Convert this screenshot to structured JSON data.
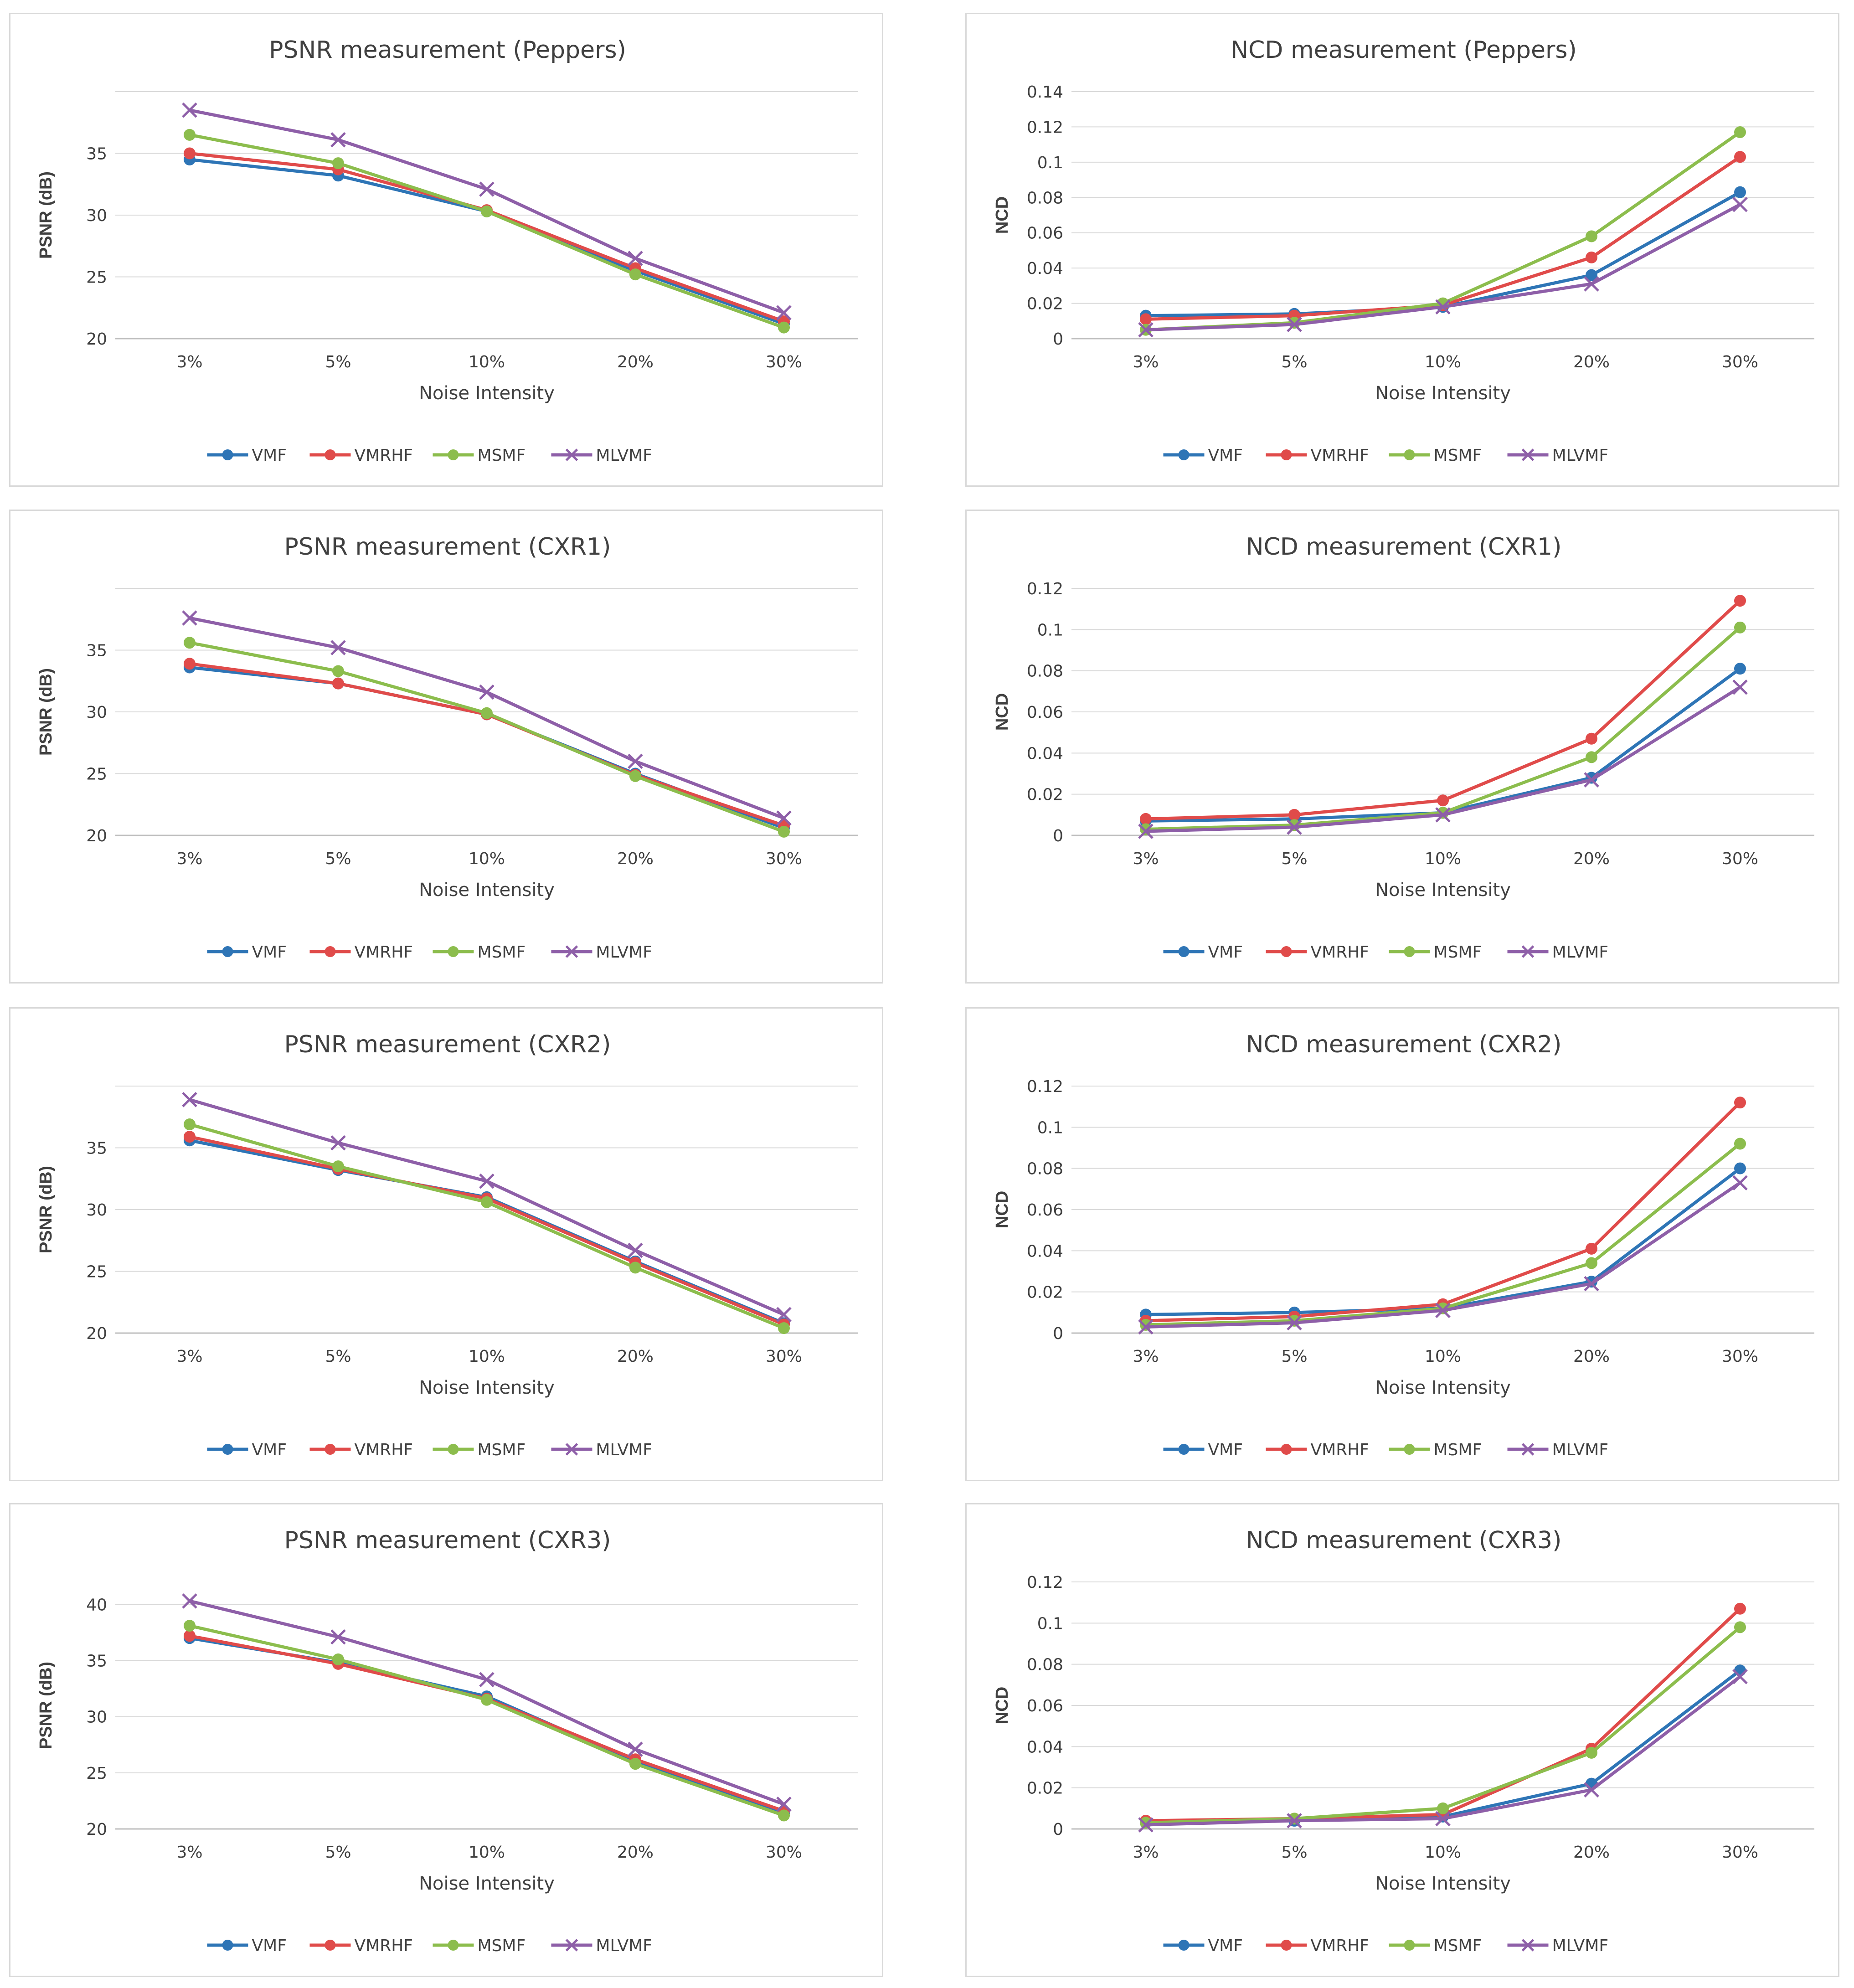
{
  "colors": {
    "VMF": "#2e75b6",
    "VMRHF": "#e04b4a",
    "MSMF": "#8cbd4d",
    "MLVMF": "#8e5fa8"
  },
  "chart_data": [
    {
      "id": "psnr-peppers",
      "type": "line",
      "title": "PSNR measurement (Peppers)",
      "xlabel": "Noise Intensity",
      "ylabel": "PSNR (dB)",
      "categories": [
        "3%",
        "5%",
        "10%",
        "20%",
        "30%"
      ],
      "ylim": [
        20,
        40
      ],
      "yticks": [
        20,
        25,
        30,
        35
      ],
      "ytick_labels": [
        "20",
        "25",
        "30",
        "35"
      ],
      "grid_ymax": 40,
      "series": [
        {
          "name": "VMF",
          "marker": "circle",
          "values": [
            34.5,
            33.2,
            30.3,
            25.5,
            21.2
          ]
        },
        {
          "name": "VMRHF",
          "marker": "circle",
          "values": [
            35.0,
            33.7,
            30.4,
            25.7,
            21.4
          ]
        },
        {
          "name": "MSMF",
          "marker": "circle",
          "values": [
            36.5,
            34.2,
            30.3,
            25.2,
            20.9
          ]
        },
        {
          "name": "MLVMF",
          "marker": "x",
          "values": [
            38.5,
            36.1,
            32.1,
            26.5,
            22.1
          ]
        }
      ]
    },
    {
      "id": "ncd-peppers",
      "type": "line",
      "title": "NCD measurement (Peppers)",
      "xlabel": "Noise Intensity",
      "ylabel": "NCD",
      "categories": [
        "3%",
        "5%",
        "10%",
        "20%",
        "30%"
      ],
      "ylim": [
        0,
        0.14
      ],
      "yticks": [
        0,
        0.02,
        0.04,
        0.06,
        0.08,
        0.1,
        0.12,
        0.14
      ],
      "ytick_labels": [
        "0",
        "0.02",
        "0.04",
        "0.06",
        "0.08",
        "0.1",
        "0.12",
        "0.14"
      ],
      "grid_ymax": 0.14,
      "series": [
        {
          "name": "VMF",
          "marker": "circle",
          "values": [
            0.013,
            0.014,
            0.018,
            0.036,
            0.083
          ]
        },
        {
          "name": "VMRHF",
          "marker": "circle",
          "values": [
            0.011,
            0.013,
            0.019,
            0.046,
            0.103
          ]
        },
        {
          "name": "MSMF",
          "marker": "circle",
          "values": [
            0.005,
            0.009,
            0.02,
            0.058,
            0.117
          ]
        },
        {
          "name": "MLVMF",
          "marker": "x",
          "values": [
            0.005,
            0.008,
            0.018,
            0.031,
            0.076
          ]
        }
      ]
    },
    {
      "id": "psnr-cxr1",
      "type": "line",
      "title": "PSNR measurement (CXR1)",
      "xlabel": "Noise Intensity",
      "ylabel": "PSNR (dB)",
      "categories": [
        "3%",
        "5%",
        "10%",
        "20%",
        "30%"
      ],
      "ylim": [
        20,
        40
      ],
      "yticks": [
        20,
        25,
        30,
        35
      ],
      "ytick_labels": [
        "20",
        "25",
        "30",
        "35"
      ],
      "grid_ymax": 40,
      "series": [
        {
          "name": "VMF",
          "marker": "circle",
          "values": [
            33.6,
            32.3,
            29.8,
            25.0,
            20.6
          ]
        },
        {
          "name": "VMRHF",
          "marker": "circle",
          "values": [
            33.9,
            32.3,
            29.8,
            24.9,
            20.8
          ]
        },
        {
          "name": "MSMF",
          "marker": "circle",
          "values": [
            35.6,
            33.3,
            29.9,
            24.8,
            20.3
          ]
        },
        {
          "name": "MLVMF",
          "marker": "x",
          "values": [
            37.6,
            35.2,
            31.6,
            26.0,
            21.4
          ]
        }
      ]
    },
    {
      "id": "ncd-cxr1",
      "type": "line",
      "title": "NCD measurement (CXR1)",
      "xlabel": "Noise Intensity",
      "ylabel": "NCD",
      "categories": [
        "3%",
        "5%",
        "10%",
        "20%",
        "30%"
      ],
      "ylim": [
        0,
        0.12
      ],
      "yticks": [
        0,
        0.02,
        0.04,
        0.06,
        0.08,
        0.1,
        0.12
      ],
      "ytick_labels": [
        "0",
        "0.02",
        "0.04",
        "0.06",
        "0.08",
        "0.1",
        "0.12"
      ],
      "grid_ymax": 0.12,
      "series": [
        {
          "name": "VMF",
          "marker": "circle",
          "values": [
            0.007,
            0.008,
            0.011,
            0.028,
            0.081
          ]
        },
        {
          "name": "VMRHF",
          "marker": "circle",
          "values": [
            0.008,
            0.01,
            0.017,
            0.047,
            0.114
          ]
        },
        {
          "name": "MSMF",
          "marker": "circle",
          "values": [
            0.003,
            0.005,
            0.011,
            0.038,
            0.101
          ]
        },
        {
          "name": "MLVMF",
          "marker": "x",
          "values": [
            0.002,
            0.004,
            0.01,
            0.027,
            0.072
          ]
        }
      ]
    },
    {
      "id": "psnr-cxr2",
      "type": "line",
      "title": "PSNR measurement (CXR2)",
      "xlabel": "Noise Intensity",
      "ylabel": "PSNR (dB)",
      "categories": [
        "3%",
        "5%",
        "10%",
        "20%",
        "30%"
      ],
      "ylim": [
        20,
        40
      ],
      "yticks": [
        20,
        25,
        30,
        35
      ],
      "ytick_labels": [
        "20",
        "25",
        "30",
        "35"
      ],
      "grid_ymax": 40,
      "series": [
        {
          "name": "VMF",
          "marker": "circle",
          "values": [
            35.6,
            33.2,
            31.0,
            25.8,
            20.8
          ]
        },
        {
          "name": "VMRHF",
          "marker": "circle",
          "values": [
            35.9,
            33.3,
            30.9,
            25.7,
            20.7
          ]
        },
        {
          "name": "MSMF",
          "marker": "circle",
          "values": [
            36.9,
            33.5,
            30.6,
            25.3,
            20.4
          ]
        },
        {
          "name": "MLVMF",
          "marker": "x",
          "values": [
            38.9,
            35.4,
            32.3,
            26.7,
            21.5
          ]
        }
      ]
    },
    {
      "id": "ncd-cxr2",
      "type": "line",
      "title": "NCD measurement (CXR2)",
      "xlabel": "Noise Intensity",
      "ylabel": "NCD",
      "categories": [
        "3%",
        "5%",
        "10%",
        "20%",
        "30%"
      ],
      "ylim": [
        0,
        0.12
      ],
      "yticks": [
        0,
        0.02,
        0.04,
        0.06,
        0.08,
        0.1,
        0.12
      ],
      "ytick_labels": [
        "0",
        "0.02",
        "0.04",
        "0.06",
        "0.08",
        "0.1",
        "0.12"
      ],
      "grid_ymax": 0.12,
      "series": [
        {
          "name": "VMF",
          "marker": "circle",
          "values": [
            0.009,
            0.01,
            0.012,
            0.025,
            0.08
          ]
        },
        {
          "name": "VMRHF",
          "marker": "circle",
          "values": [
            0.006,
            0.008,
            0.014,
            0.041,
            0.112
          ]
        },
        {
          "name": "MSMF",
          "marker": "circle",
          "values": [
            0.004,
            0.006,
            0.012,
            0.034,
            0.092
          ]
        },
        {
          "name": "MLVMF",
          "marker": "x",
          "values": [
            0.003,
            0.005,
            0.011,
            0.024,
            0.073
          ]
        }
      ]
    },
    {
      "id": "psnr-cxr3",
      "type": "line",
      "title": "PSNR measurement (CXR3)",
      "xlabel": "Noise Intensity",
      "ylabel": "PSNR (dB)",
      "categories": [
        "3%",
        "5%",
        "10%",
        "20%",
        "30%"
      ],
      "ylim": [
        20,
        42
      ],
      "yticks": [
        20,
        25,
        30,
        35,
        40
      ],
      "ytick_labels": [
        "20",
        "25",
        "30",
        "35",
        "40"
      ],
      "grid_ymax": 40,
      "series": [
        {
          "name": "VMF",
          "marker": "circle",
          "values": [
            37.0,
            34.8,
            31.8,
            26.0,
            21.4
          ]
        },
        {
          "name": "VMRHF",
          "marker": "circle",
          "values": [
            37.2,
            34.7,
            31.6,
            26.2,
            21.6
          ]
        },
        {
          "name": "MSMF",
          "marker": "circle",
          "values": [
            38.1,
            35.1,
            31.5,
            25.8,
            21.2
          ]
        },
        {
          "name": "MLVMF",
          "marker": "x",
          "values": [
            40.3,
            37.1,
            33.3,
            27.1,
            22.2
          ]
        }
      ]
    },
    {
      "id": "ncd-cxr3",
      "type": "line",
      "title": "NCD measurement (CXR3)",
      "xlabel": "Noise Intensity",
      "ylabel": "NCD",
      "categories": [
        "3%",
        "5%",
        "10%",
        "20%",
        "30%"
      ],
      "ylim": [
        0,
        0.12
      ],
      "yticks": [
        0,
        0.02,
        0.04,
        0.06,
        0.08,
        0.1,
        0.12
      ],
      "ytick_labels": [
        "0",
        "0.02",
        "0.04",
        "0.06",
        "0.08",
        "0.1",
        "0.12"
      ],
      "grid_ymax": 0.12,
      "series": [
        {
          "name": "VMF",
          "marker": "circle",
          "values": [
            0.003,
            0.004,
            0.006,
            0.022,
            0.077
          ]
        },
        {
          "name": "VMRHF",
          "marker": "circle",
          "values": [
            0.004,
            0.005,
            0.007,
            0.039,
            0.107
          ]
        },
        {
          "name": "MSMF",
          "marker": "circle",
          "values": [
            0.003,
            0.005,
            0.01,
            0.037,
            0.098
          ]
        },
        {
          "name": "MLVMF",
          "marker": "x",
          "values": [
            0.002,
            0.004,
            0.005,
            0.019,
            0.074
          ]
        }
      ]
    }
  ]
}
